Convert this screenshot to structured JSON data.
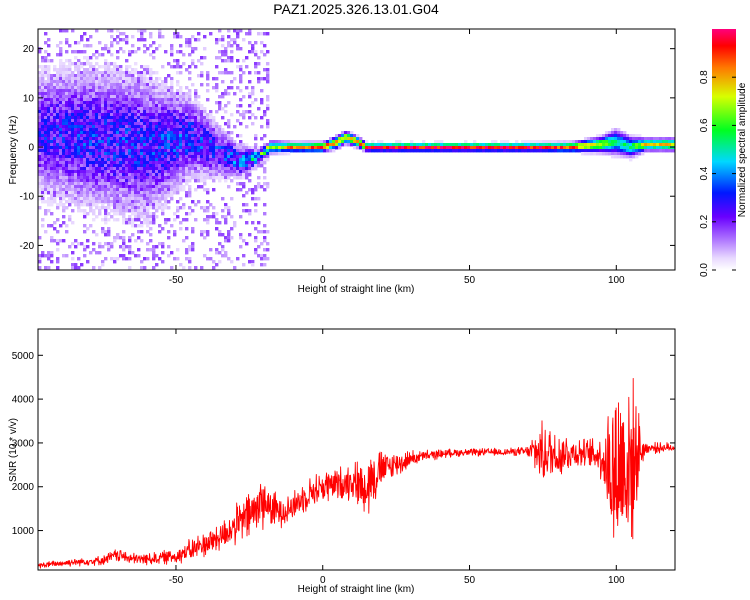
{
  "title": "PAZ1.2025.326.13.01.G04",
  "chart_data": [
    {
      "type": "heatmap",
      "id": "spectrogram",
      "xlabel": "Height of straight line (km)",
      "ylabel": "Frequency (Hz)",
      "xlim": [
        -97,
        120
      ],
      "ylim": [
        -25,
        24
      ],
      "xticks": [
        -50,
        0,
        50,
        100
      ],
      "xtick_labels": [
        "-50",
        "0",
        "50",
        "100"
      ],
      "yticks": [
        -20,
        -10,
        0,
        10,
        20
      ],
      "ytick_labels": [
        "-20",
        "-10",
        "0",
        "10",
        "20"
      ],
      "grid": false,
      "colorbar": {
        "label": "Normalized spectral amplitude",
        "range": [
          0,
          1
        ],
        "ticks": [
          0,
          0.2,
          0.4,
          0.6,
          0.8
        ],
        "tick_labels": [
          "0.0",
          "0.2",
          "0.4",
          "0.6",
          "0.8"
        ],
        "colormap": "rainbow-white-to-red"
      },
      "ridge": {
        "description": "dominant frequency band vs height",
        "x": [
          -97,
          -80,
          -60,
          -45,
          -35,
          -28,
          -22,
          -18,
          -10,
          0,
          5,
          8,
          12,
          15,
          30,
          50,
          70,
          85,
          95,
          100,
          105,
          110,
          120
        ],
        "frequency": [
          3,
          2,
          0,
          2,
          -1,
          -3,
          -2,
          0,
          0,
          0,
          1,
          2,
          1,
          0,
          0,
          0,
          0,
          0,
          0.5,
          1,
          0,
          0.5,
          0.5
        ],
        "spread_hz": [
          12,
          14,
          14,
          8,
          5,
          3,
          1.5,
          1.2,
          0.9,
          0.9,
          1.2,
          1.2,
          1,
          0.8,
          0.8,
          0.8,
          0.8,
          0.9,
          1.5,
          2.5,
          2,
          1.2,
          1.2
        ],
        "amplitude": [
          0.25,
          0.28,
          0.28,
          0.3,
          0.28,
          0.35,
          0.5,
          0.6,
          0.85,
          0.92,
          0.8,
          0.75,
          0.85,
          0.95,
          0.97,
          0.97,
          0.95,
          0.9,
          0.7,
          0.5,
          0.55,
          0.75,
          0.75
        ]
      }
    },
    {
      "type": "line",
      "id": "snr",
      "xlabel": "Height of straight line (km)",
      "ylabel": "SNR (10 * v/v)",
      "xlim": [
        -97,
        120
      ],
      "ylim": [
        100,
        5600
      ],
      "xticks": [
        -50,
        0,
        50,
        100
      ],
      "xtick_labels": [
        "-50",
        "0",
        "50",
        "100"
      ],
      "yticks": [
        1000,
        2000,
        3000,
        4000,
        5000
      ],
      "ytick_labels": [
        "1000",
        "2000",
        "3000",
        "4000",
        "5000"
      ],
      "grid": false,
      "series": [
        {
          "name": "SNR",
          "color": "#ff0000",
          "x": [
            -97,
            -85,
            -75,
            -70,
            -65,
            -60,
            -55,
            -50,
            -45,
            -40,
            -35,
            -30,
            -27,
            -24,
            -22,
            -20,
            -18,
            -15,
            -10,
            -5,
            0,
            5,
            10,
            14,
            16,
            18,
            22,
            27,
            30,
            35,
            40,
            45,
            50,
            55,
            60,
            65,
            70,
            73,
            76,
            80,
            85,
            90,
            95,
            97,
            99,
            101,
            103,
            105,
            107,
            110,
            120
          ],
          "values": [
            200,
            280,
            320,
            450,
            350,
            350,
            380,
            420,
            550,
            700,
            850,
            1100,
            1250,
            1400,
            1550,
            1700,
            1500,
            1450,
            1550,
            1850,
            2000,
            2050,
            2150,
            2000,
            2100,
            2300,
            2450,
            2550,
            2650,
            2700,
            2750,
            2780,
            2780,
            2790,
            2790,
            2800,
            2800,
            2800,
            2750,
            2750,
            2780,
            2770,
            2700,
            2500,
            2300,
            2400,
            2600,
            2400,
            2800,
            2880,
            2900
          ],
          "noise": [
            80,
            100,
            120,
            180,
            150,
            160,
            180,
            200,
            300,
            350,
            400,
            500,
            600,
            700,
            800,
            700,
            500,
            450,
            400,
            400,
            450,
            450,
            500,
            700,
            900,
            700,
            400,
            300,
            200,
            150,
            120,
            100,
            100,
            100,
            100,
            100,
            150,
            700,
            800,
            700,
            450,
            350,
            600,
            1600,
            2400,
            2600,
            2600,
            2600,
            1200,
            150,
            120
          ]
        }
      ]
    }
  ]
}
